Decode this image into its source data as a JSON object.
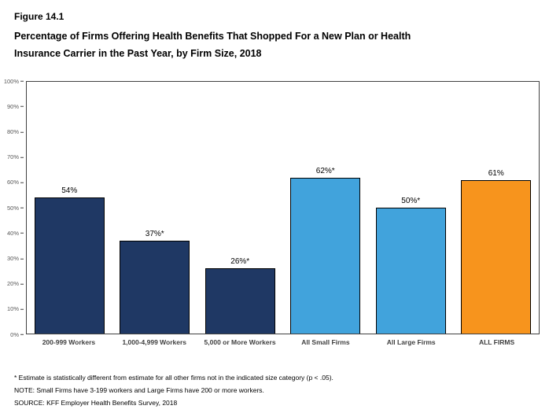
{
  "figure": {
    "label": "Figure 14.1",
    "title_line1": "Percentage of Firms Offering Health Benefits That Shopped For a New Plan or Health",
    "title_line2": "Insurance Carrier in the Past Year, by Firm Size, 2018"
  },
  "footnotes": [
    "* Estimate is statistically different from estimate for all other firms not in the indicated size category (p < .05).",
    "NOTE: Small Firms have 3-199 workers and Large Firms have 200 or more workers.",
    "SOURCE: KFF Employer Health Benefits Survey, 2018"
  ],
  "chart_data": {
    "type": "bar",
    "title": "Percentage of Firms Offering Health Benefits That Shopped For a New Plan or Health Insurance Carrier in the Past Year, by Firm Size, 2018",
    "categories": [
      "200-999 Workers",
      "1,000-4,999 Workers",
      "5,000 or More Workers",
      "All Small Firms",
      "All Large Firms",
      "ALL FIRMS"
    ],
    "values": [
      54,
      37,
      26,
      62,
      50,
      61
    ],
    "data_labels": [
      "54%",
      "37%*",
      "26%*",
      "62%*",
      "50%*",
      "61%"
    ],
    "bar_colors": [
      "#1F3864",
      "#1F3864",
      "#1F3864",
      "#41A3DC",
      "#41A3DC",
      "#F7941D"
    ],
    "ylim": [
      0,
      100
    ],
    "ytick_step": 10,
    "ytick_labels": [
      "0%",
      "10%",
      "20%",
      "30%",
      "40%",
      "50%",
      "60%",
      "70%",
      "80%",
      "90%",
      "100%"
    ],
    "grid": false,
    "legend": "none",
    "xlabel": "",
    "ylabel": ""
  }
}
